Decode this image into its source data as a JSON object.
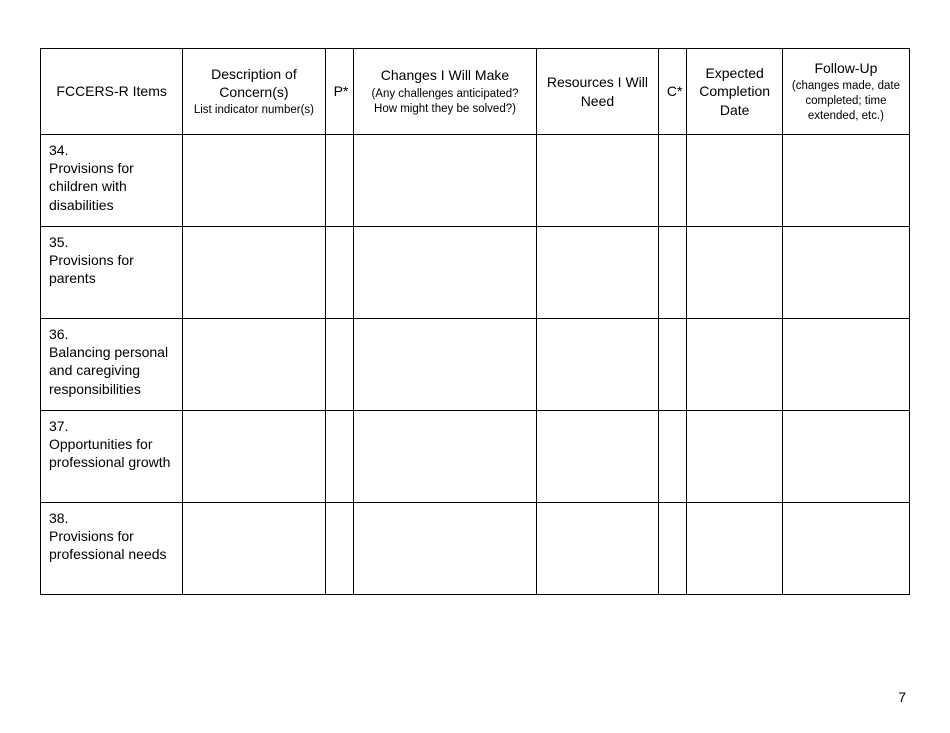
{
  "table": {
    "columns": [
      {
        "main": "FCCERS-R Items",
        "sub": ""
      },
      {
        "main": "Description of Concern(s)",
        "sub": "List indicator number(s)"
      },
      {
        "main": "P*",
        "sub": ""
      },
      {
        "main": "Changes I Will Make",
        "sub": "(Any challenges anticipated? How might they be solved?)"
      },
      {
        "main": "Resources I Will Need",
        "sub": ""
      },
      {
        "main": "C*",
        "sub": ""
      },
      {
        "main": "Expected Completion Date",
        "sub": ""
      },
      {
        "main": "Follow-Up",
        "sub": "(changes made, date completed; time extended, etc.)"
      }
    ],
    "rows": [
      {
        "num": "34.",
        "item": "Provisions for children with disabilities"
      },
      {
        "num": "35.",
        "item": "Provisions for parents"
      },
      {
        "num": "36.",
        "item": "Balancing personal and caregiving responsibilities"
      },
      {
        "num": "37.",
        "item": "Opportunities for professional growth"
      },
      {
        "num": "38.",
        "item": "Provisions for professional needs"
      }
    ]
  },
  "page_number": "7"
}
